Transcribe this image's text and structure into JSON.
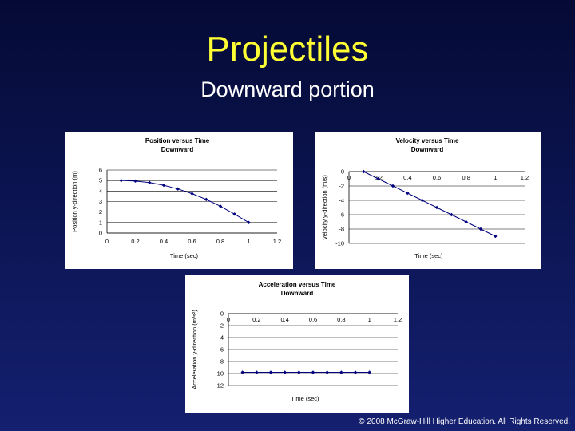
{
  "slide": {
    "title": "Projectiles",
    "subtitle": "Downward portion",
    "footer": "© 2008 McGraw-Hill Higher Education. All Rights Reserved."
  },
  "colors": {
    "title": "#ffff33",
    "text": "#ffffff",
    "series": "#000080",
    "gridline": "#000000"
  },
  "chart_data": [
    {
      "type": "line",
      "title": "Position versus Time",
      "subtitle": "Downward",
      "xlabel": "Time (sec)",
      "ylabel": "Position y-direction (m)",
      "xlim": [
        0,
        1.2
      ],
      "ylim": [
        0,
        6
      ],
      "xticks": [
        0,
        0.2,
        0.4,
        0.6,
        0.8,
        1,
        1.2
      ],
      "xtick_labels": [
        "0",
        "0.2",
        "0.4",
        "0.6",
        "0.8",
        "1",
        "1.2"
      ],
      "yticks": [
        0,
        1,
        2,
        3,
        4,
        5,
        6
      ],
      "ytick_labels": [
        "0",
        "1",
        "2",
        "3",
        "4",
        "5",
        "6"
      ],
      "grid": true,
      "x": [
        0.1,
        0.2,
        0.3,
        0.4,
        0.5,
        0.6,
        0.7,
        0.8,
        0.9,
        1.0
      ],
      "y": [
        5.0,
        4.95,
        4.8,
        4.55,
        4.2,
        3.75,
        3.2,
        2.55,
        1.8,
        1.0
      ]
    },
    {
      "type": "line",
      "title": "Velocity versus Time",
      "subtitle": "Downward",
      "xlabel": "Time (sec)",
      "ylabel": "Velocity y-direction (m/s)",
      "xlim": [
        0,
        1.2
      ],
      "ylim": [
        -10,
        0
      ],
      "xticks": [
        0,
        0.2,
        0.4,
        0.6,
        0.8,
        1,
        1.2
      ],
      "xtick_labels": [
        "0",
        "0.2",
        "0.4",
        "0.6",
        "0.8",
        "1",
        "1.2"
      ],
      "yticks": [
        0,
        -2,
        -4,
        -6,
        -8,
        -10
      ],
      "ytick_labels": [
        "0",
        "-2",
        "-4",
        "-6",
        "-8",
        "-10"
      ],
      "grid": true,
      "x": [
        0.1,
        0.2,
        0.3,
        0.4,
        0.5,
        0.6,
        0.7,
        0.8,
        0.9,
        1.0
      ],
      "y": [
        0,
        -1,
        -2,
        -3,
        -4,
        -5,
        -6,
        -7,
        -8,
        -9
      ]
    },
    {
      "type": "line",
      "title": "Acceleration versus Time",
      "subtitle": "Downward",
      "xlabel": "Time (sec)",
      "ylabel": "Acceleration y-direction (m/s²)",
      "xlim": [
        0,
        1.2
      ],
      "ylim": [
        -12,
        0
      ],
      "xticks": [
        0,
        0.2,
        0.4,
        0.6,
        0.8,
        1,
        1.2
      ],
      "xtick_labels": [
        "0",
        "0.2",
        "0.4",
        "0.6",
        "0.8",
        "1",
        "1.2"
      ],
      "yticks": [
        0,
        -2,
        -4,
        -6,
        -8,
        -10,
        -12
      ],
      "ytick_labels": [
        "0",
        "-2",
        "-4",
        "-6",
        "-8",
        "-10",
        "-12"
      ],
      "grid": true,
      "x": [
        0.1,
        0.2,
        0.3,
        0.4,
        0.5,
        0.6,
        0.7,
        0.8,
        0.9,
        1.0
      ],
      "y": [
        -9.8,
        -9.8,
        -9.8,
        -9.8,
        -9.8,
        -9.8,
        -9.8,
        -9.8,
        -9.8,
        -9.8
      ]
    }
  ]
}
